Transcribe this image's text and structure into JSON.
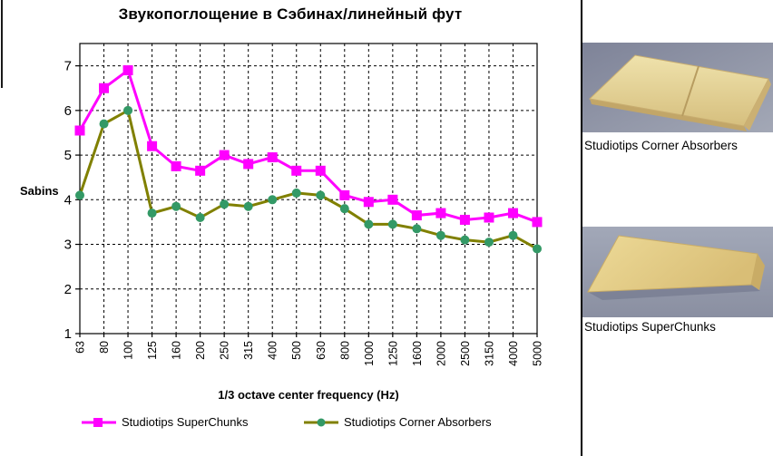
{
  "chart_data": {
    "type": "line",
    "title": "Звукопоглощение в Сэбинах/линейный фут",
    "xlabel": "1/3 octave center frequency (Hz)",
    "ylabel": "Sabins",
    "categories": [
      "63",
      "80",
      "100",
      "125",
      "160",
      "200",
      "250",
      "315",
      "400",
      "500",
      "630",
      "800",
      "1000",
      "1250",
      "1600",
      "2000",
      "2500",
      "3150",
      "4000",
      "5000"
    ],
    "series": [
      {
        "name": "Studiotips SuperChunks",
        "line_color": "#FF00FF",
        "marker": "square",
        "marker_color": "#FF00FF",
        "values": [
          5.55,
          6.5,
          6.9,
          5.2,
          4.75,
          4.65,
          5.0,
          4.8,
          4.95,
          4.65,
          4.65,
          4.1,
          3.95,
          4.0,
          3.65,
          3.7,
          3.55,
          3.6,
          3.7,
          3.5
        ]
      },
      {
        "name": "Studiotips Corner Absorbers",
        "line_color": "#808000",
        "marker": "circle",
        "marker_color": "#339966",
        "values": [
          4.1,
          5.7,
          6.0,
          3.7,
          3.85,
          3.6,
          3.9,
          3.85,
          4.0,
          4.15,
          4.1,
          3.8,
          3.45,
          3.45,
          3.35,
          3.2,
          3.1,
          3.05,
          3.2,
          2.9
        ]
      }
    ],
    "ylim": [
      1,
      7.5
    ],
    "yticks": [
      1,
      2,
      3,
      4,
      5,
      6,
      7
    ],
    "grid": true,
    "legend_position": "bottom"
  },
  "sidebar": {
    "photo_captions": [
      "Studiotips Corner Absorbers",
      "Studiotips SuperChunks"
    ]
  }
}
